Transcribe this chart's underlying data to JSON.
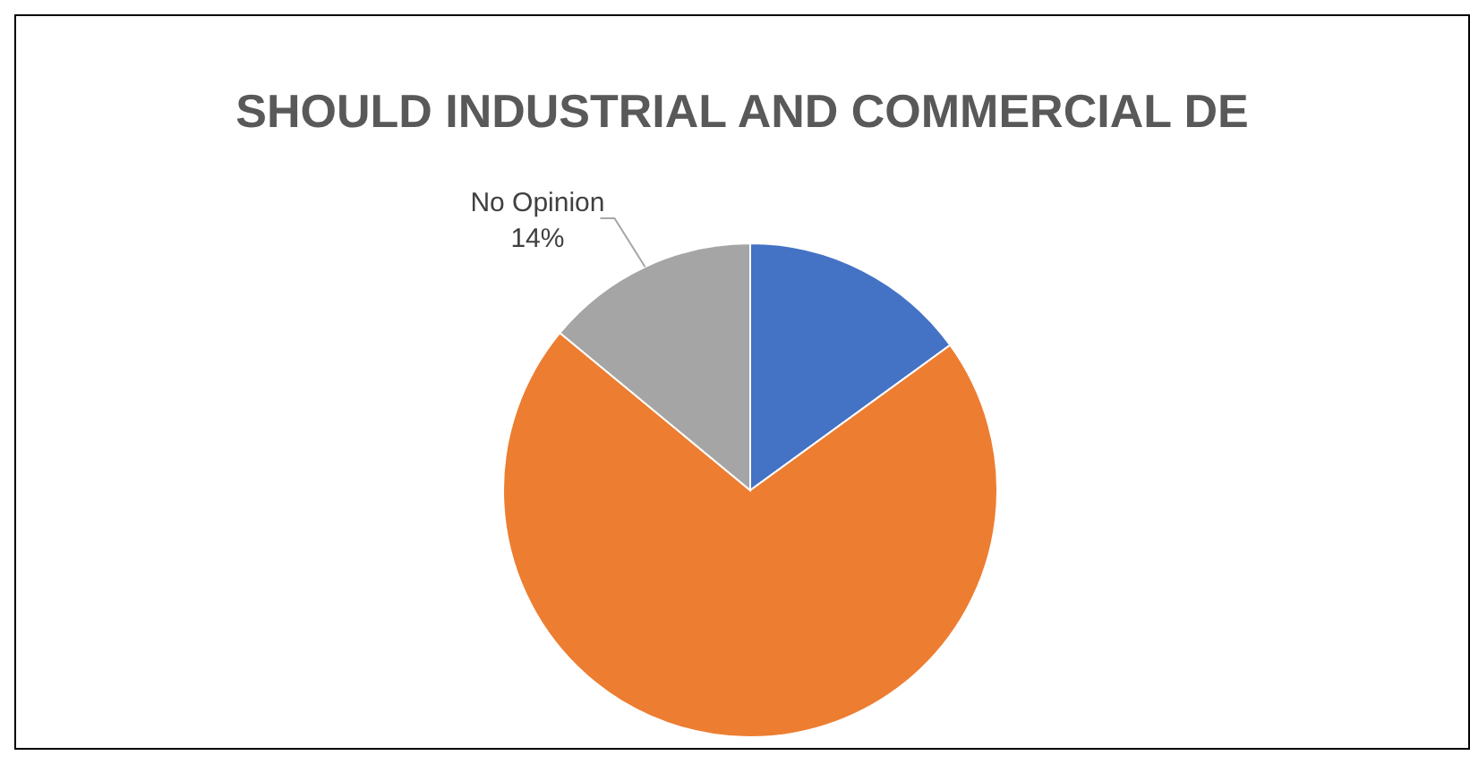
{
  "chart_data": {
    "type": "pie",
    "title": "SHOULD INDUSTRIAL AND COMMERCIAL DE",
    "categories": [
      null,
      null,
      "No Opinion"
    ],
    "values": [
      15,
      71,
      14
    ],
    "colors": [
      "#4472c4",
      "#ed7d31",
      "#a5a5a5"
    ],
    "value_labels": [
      null,
      null,
      "14%"
    ],
    "legend": false
  }
}
